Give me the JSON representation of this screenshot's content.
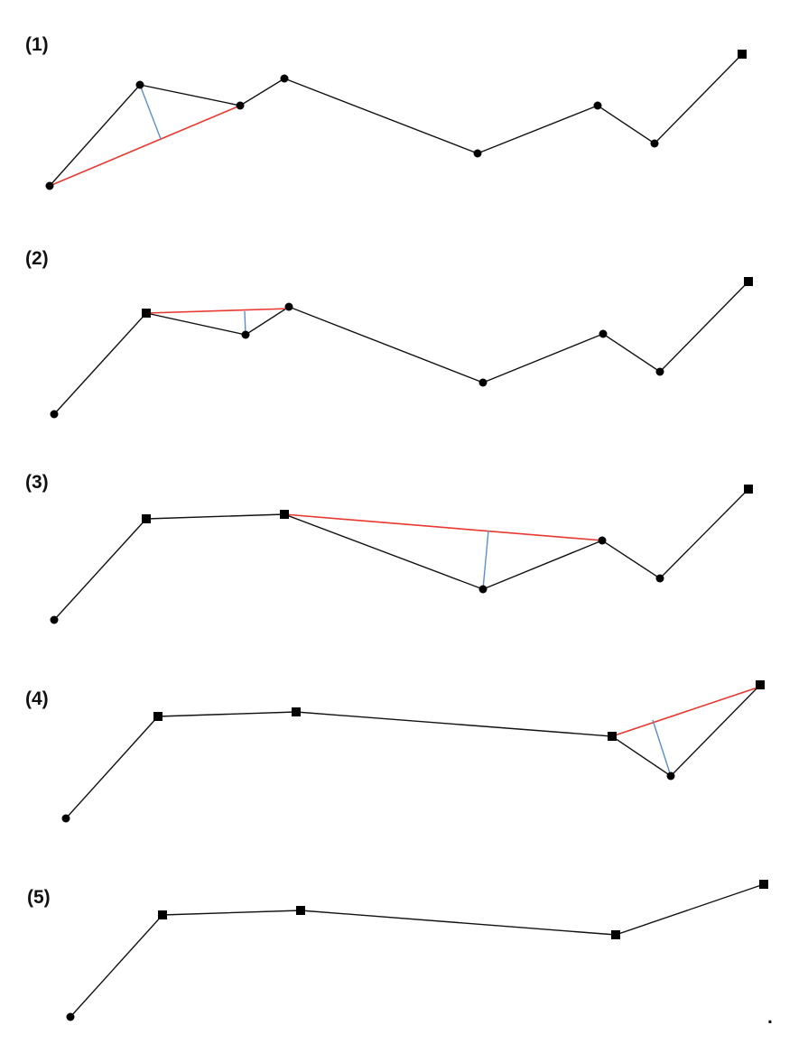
{
  "panels": [
    {
      "label": "(1)"
    },
    {
      "label": "(2)"
    },
    {
      "label": "(3)"
    },
    {
      "label": "(4)"
    },
    {
      "label": "(5)"
    }
  ],
  "end_mark": "."
}
